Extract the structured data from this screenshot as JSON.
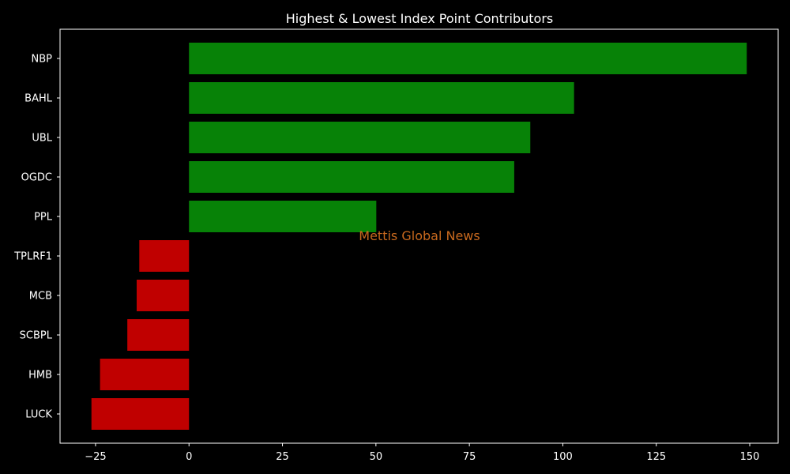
{
  "chart_data": {
    "type": "bar",
    "orientation": "horizontal",
    "title": "Highest & Lowest Index Point Contributors",
    "xlabel": "",
    "ylabel": "",
    "categories": [
      "NBP",
      "BAHL",
      "UBL",
      "OGDC",
      "PPL",
      "TPLRF1",
      "MCB",
      "SCBPL",
      "HMB",
      "LUCK"
    ],
    "values": [
      149.2,
      103.0,
      91.3,
      87.0,
      50.1,
      -13.3,
      -14.0,
      -16.5,
      -23.8,
      -26.1
    ],
    "xlim": [
      -34.5,
      157.6
    ],
    "xticks": [
      -25,
      0,
      25,
      50,
      75,
      100,
      125,
      150
    ],
    "xtick_labels": [
      "−25",
      "0",
      "25",
      "50",
      "75",
      "100",
      "125",
      "150"
    ],
    "grid": false,
    "legend": "none",
    "watermark": "Mettis Global News",
    "colors": {
      "positive": "#078207",
      "negative": "#c00000",
      "background": "#000000",
      "text": "#ffffff",
      "axes": "#ffffff",
      "watermark": "#c8691e"
    }
  }
}
